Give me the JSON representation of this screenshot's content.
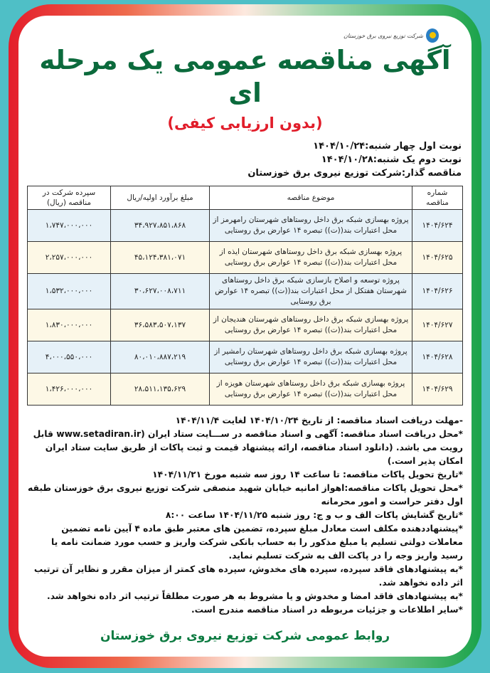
{
  "logo": {
    "text": "شرکت توزیع نیروی برق خوزستان"
  },
  "title": "آگهی مناقصه عمومی یک مرحله ای",
  "subtitle": "(بدون ارزیابی کیفی)",
  "info": [
    "نوبت اول چهار شنبه:۱۴۰۴/۱۰/۲۴",
    "نوبت دوم یک شنبه:۱۴۰۴/۱۰/۲۸",
    "مناقصه گذار:شرکت توزیع نیروی برق خوزستان"
  ],
  "table": {
    "headers": [
      "شماره مناقصه",
      "موضوع مناقصه",
      "مبلغ برآورد اولیه/ریال",
      "سپرده شرکت در مناقصه (ریال)"
    ],
    "rows": [
      {
        "number": "۱۴۰۴/۶۲۴",
        "subject": "پروژه بهسازی شبکه برق داخل روستاهای شهرستان رامهرمز از محل اعتبارات بند((ت)) تبصره ۱۴ عوارض برق روستایی",
        "estimate": "۳۴،۹۲۷،۸۵۱،۸۶۸",
        "deposit": "۱،۷۴۷،۰۰۰،۰۰۰"
      },
      {
        "number": "۱۴۰۴/۶۲۵",
        "subject": "پروژه بهسازی شبکه برق داخل روستاهای شهرستان ایذه از محل اعتبارات بند((ت)) تبصره ۱۴ عوارض برق روستایی",
        "estimate": "۴۵،۱۲۴،۳۸۱،۰۷۱",
        "deposit": "۲،۲۵۷،۰۰۰،۰۰۰"
      },
      {
        "number": "۱۴۰۴/۶۲۶",
        "subject": "پروژه توسعه و اصلاح بازسازی شبکه برق داخل روستاهای شهرستان هفتکل از محل اعتبارات بند((ت)) تبصره ۱۴ عوارض برق روستایی",
        "estimate": "۳۰،۶۲۷،۰۰۸،۷۱۱",
        "deposit": "۱،۵۳۲،۰۰۰،۰۰۰"
      },
      {
        "number": "۱۴۰۴/۶۲۷",
        "subject": "پروژه بهسازی شبکه برق داخل روستاهای شهرستان هندیجان از محل اعتبارات بند((ت)) تبصره ۱۴ عوارض برق روستایی",
        "estimate": "۳۶،۵۸۳،۵۰۷،۱۳۷",
        "deposit": "۱،۸۳۰،۰۰۰،۰۰۰"
      },
      {
        "number": "۱۴۰۴/۶۲۸",
        "subject": "پروژه بهسازی شبکه برق داخل روستاهای شهرستان رامشیر از محل اعتبارات بند((ت)) تبصره ۱۴ عوارض برق روستایی",
        "estimate": "۸۰،۰۱۰،۸۸۷،۲۱۹",
        "deposit": "۴،۰۰۰،۵۵۰،۰۰۰"
      },
      {
        "number": "۱۴۰۴/۶۲۹",
        "subject": "پروژه بهسازی شبکه برق داخل روستاهای شهرستان هویزه از محل اعتبارات بند((ت)) تبصره ۱۴ عوارض برق روستایی",
        "estimate": "۲۸،۵۱۱،۱۳۵،۶۲۹",
        "deposit": "۱،۴۲۶،۰۰۰،۰۰۰"
      }
    ]
  },
  "notes": [
    "-مهلت دریافت اسناد مناقصه: از تاریخ ۱۴۰۴/۱۰/۲۴ لغایت ۱۴۰۴/۱۱/۴",
    "*محل دریافت اسناد مناقصه: آگهی و اسناد مناقصه در ســـایت ستاد ایران (www.setadiran.ir قابل رویت می باشد. (دانلود اسناد مناقصه، ارائه پیشنهاد قیمت و ثبت پاکات از طریق سایت ستاد ایران امکان پذیر است.)",
    "*تاریخ تحویل پاکات مناقصه: تا ساعت ۱۴ روز سه شنبه مورخ ۱۴۰۴/۱۱/۲۱",
    "*محل تحویل پاکات مناقصه:اهواز امانیه خیابان شهید منصفی شرکت توزیع نیروی برق خوزستان طبقه اول دفتر حراست و امور محرمانه",
    "*تاریخ گشایش پاکات الف و ب و ج: روز شنبه ۱۴۰۴/۱۱/۲۵ ساعت ۸:۰۰",
    "*پیشنهاددهنده مکلف است معادل مبلغ سپرده، تضمین های معتبر طبق ماده ۴ آیین نامه تضمین معاملات دولتی تسلیم یا مبلغ مذکور را به حساب بانکی شرکت واریز و حسب مورد ضمانت نامه یا رسید واریز وجه را در پاکت الف به شرکت تسلیم نماید.",
    "*به پیشنهادهای فاقد سپرده، سپرده های مخدوش، سپرده های کمتر از میزان مقرر و نظایر آن ترتیب اثر داده نخواهد شد.",
    "*به پیشنهادهای فاقد امضا و مخدوش و یا مشروط به هر صورت مطلقاً ترتیب اثر داده نخواهد شد.",
    "*سایر اطلاعات و جزئیات مربوطه در اسناد مناقصه مندرج است."
  ],
  "footer": "روابط عمومی شرکت توزیع نیروی برق خوزستان",
  "colors": {
    "title": "#0b6a3c",
    "subtitle": "#e11d2a",
    "frame_left": "#e41e2b",
    "frame_right": "#1aa34a",
    "outer": "#4fbfc6"
  }
}
